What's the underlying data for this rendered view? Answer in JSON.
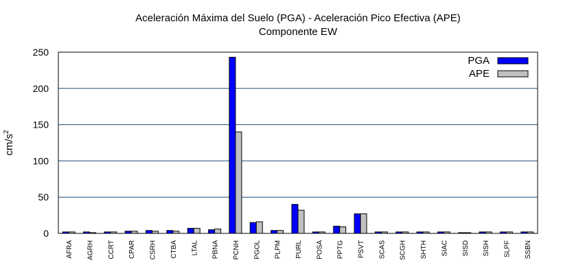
{
  "chart_data": {
    "type": "bar",
    "title": "Aceleración Máxima del Suelo (PGA) -  Aceleración Pico Efectiva (APE)",
    "subtitle": "Componente EW",
    "ylabel": "cm/s",
    "ylabel_sup": "2",
    "xlabel": "",
    "ylim": [
      0,
      250
    ],
    "yticks": [
      0,
      50,
      100,
      150,
      200,
      250
    ],
    "grid": true,
    "legend_position": "top-right",
    "categories": [
      "AFRA",
      "AGRH",
      "CCRT",
      "CPAR",
      "CSRH",
      "CTBA",
      "LTAL",
      "PBNA",
      "PCNH",
      "PGOL",
      "PLPM",
      "PURL",
      "POSA",
      "PPTG",
      "PSVT",
      "SCAS",
      "SCGH",
      "SHTH",
      "SIAC",
      "SISD",
      "SISH",
      "SLPF",
      "SSBN"
    ],
    "series": [
      {
        "name": "PGA",
        "color": "#0000ff",
        "values": [
          2,
          2,
          2,
          3,
          4,
          4,
          7,
          5,
          243,
          15,
          4,
          40,
          2,
          10,
          27,
          2,
          2,
          2,
          2,
          1,
          2,
          2,
          2
        ]
      },
      {
        "name": "APE",
        "color": "#c0c0c0",
        "values": [
          2,
          1,
          2,
          3,
          3,
          3,
          7,
          6,
          140,
          16,
          4,
          32,
          2,
          9,
          27,
          2,
          2,
          2,
          2,
          1,
          2,
          2,
          2
        ]
      }
    ]
  }
}
